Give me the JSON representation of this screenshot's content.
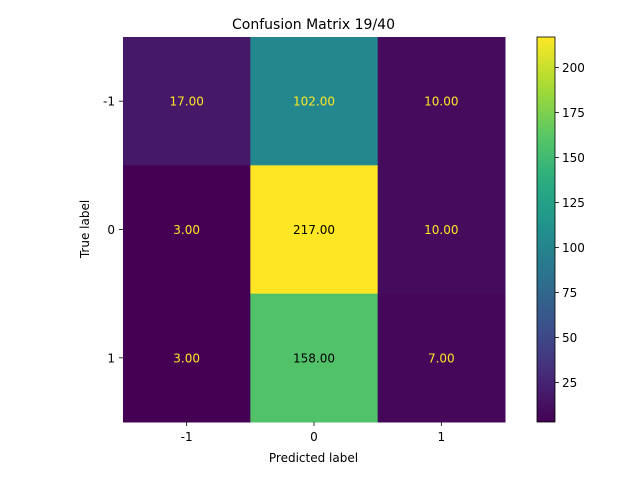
{
  "chart_data": {
    "type": "heatmap",
    "title": "Confusion Matrix 19/40",
    "xlabel": "Predicted label",
    "ylabel": "True label",
    "x_categories": [
      "-1",
      "0",
      "1"
    ],
    "y_categories": [
      "-1",
      "0",
      "1"
    ],
    "values": [
      [
        17,
        102,
        10
      ],
      [
        3,
        217,
        10
      ],
      [
        3,
        158,
        7
      ]
    ],
    "cell_labels": [
      [
        "17.00",
        "102.00",
        "10.00"
      ],
      [
        "3.00",
        "217.00",
        "10.00"
      ],
      [
        "3.00",
        "158.00",
        "7.00"
      ]
    ],
    "colormap": "viridis",
    "colorbar": {
      "range": [
        3,
        217
      ],
      "ticks": [
        25,
        50,
        75,
        100,
        125,
        150,
        175,
        200
      ]
    },
    "text_colors": {
      "light": "#fde725",
      "dark": "#000000"
    }
  }
}
